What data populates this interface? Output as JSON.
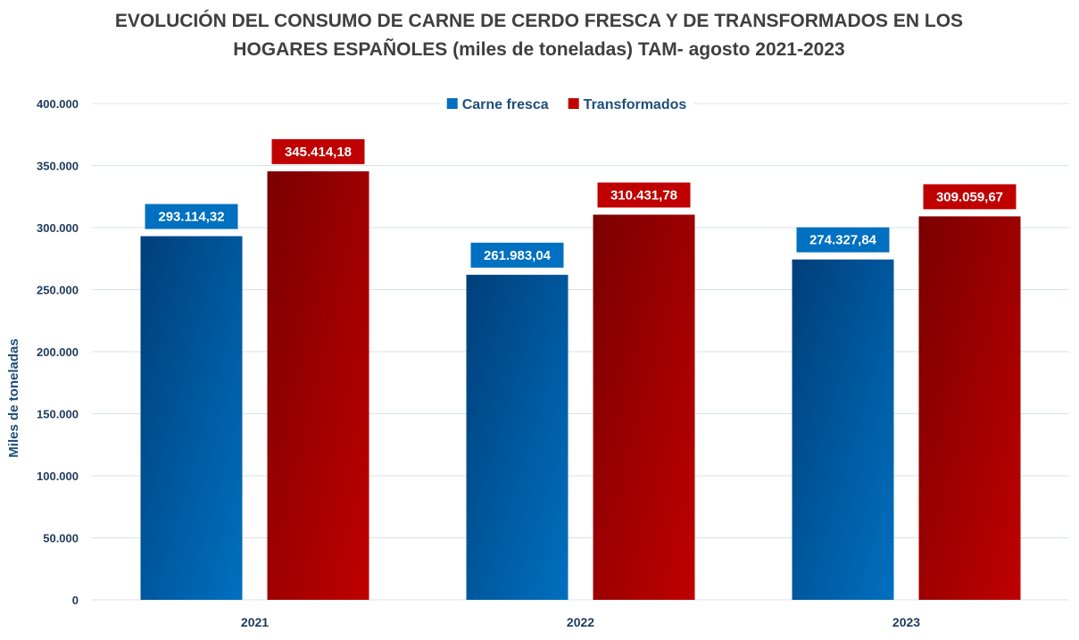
{
  "chart_data": {
    "type": "bar",
    "title_lines": [
      "EVOLUCIÓN DEL CONSUMO DE CARNE DE CERDO FRESCA Y DE TRANSFORMADOS EN LOS",
      "HOGARES ESPAÑOLES (miles de toneladas) TAM- agosto 2021-2023"
    ],
    "xlabel": "",
    "ylabel": "Miles de toneladas",
    "ylim": [
      0,
      400000
    ],
    "yticks": [
      0,
      50000,
      100000,
      150000,
      200000,
      250000,
      300000,
      350000,
      400000
    ],
    "ytick_labels": [
      "0",
      "50.000",
      "100.000",
      "150.000",
      "200.000",
      "250.000",
      "300.000",
      "350.000",
      "400.000"
    ],
    "categories": [
      "2021",
      "2022",
      "2023"
    ],
    "grid": true,
    "legend_position": "top",
    "series": [
      {
        "name": "Carne fresca",
        "color": "#0070c0",
        "color_dark": "#003f7a",
        "values": [
          293114.32,
          261983.04,
          274327.84
        ],
        "labels": [
          "293.114,32",
          "261.983,04",
          "274.327,84"
        ]
      },
      {
        "name": "Transformados",
        "color": "#c00000",
        "color_dark": "#7a0000",
        "values": [
          345414.18,
          310431.78,
          309059.67
        ],
        "labels": [
          "345.414,18",
          "310.431,78",
          "309.059,67"
        ]
      }
    ]
  }
}
